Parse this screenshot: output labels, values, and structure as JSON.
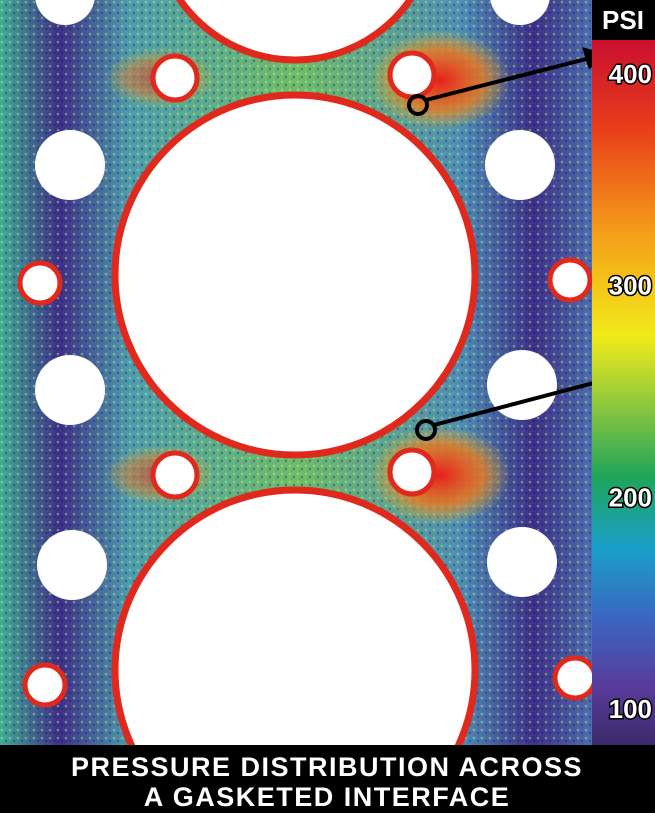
{
  "colorbar": {
    "label": "PSI",
    "ticks": [
      400,
      300,
      200,
      100
    ],
    "lim": [
      84,
      417
    ]
  },
  "caption": {
    "lines": [
      "PRESSURE DISTRIBUTION ACROSS",
      "A GASKETED INTERFACE"
    ]
  }
}
